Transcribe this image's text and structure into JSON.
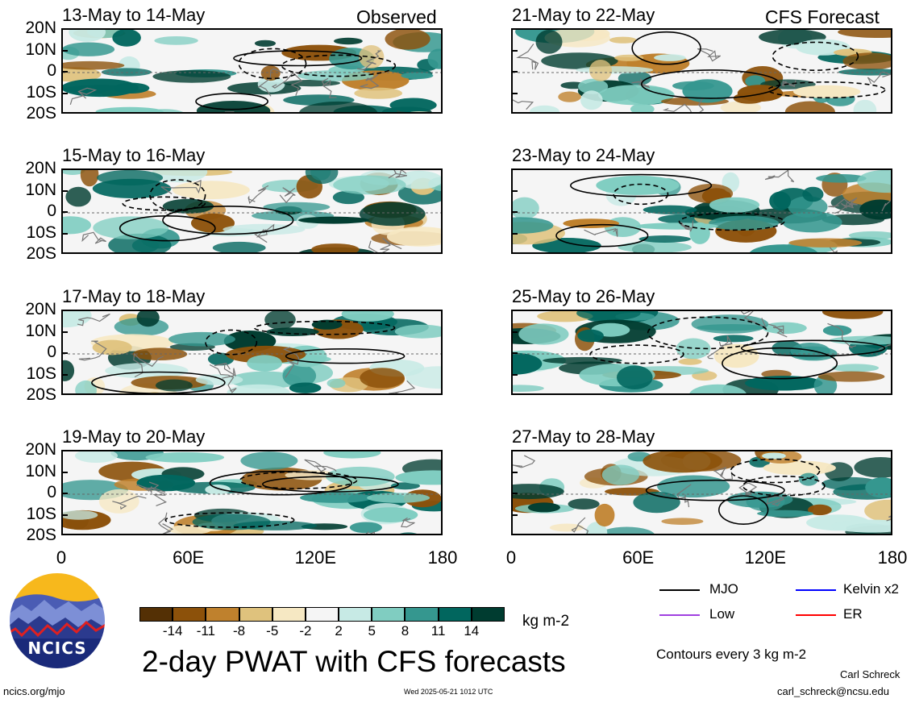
{
  "header": {
    "observed_label": "Observed",
    "forecast_label": "CFS Forecast"
  },
  "chart_data": {
    "type": "heatmap",
    "title": "2-day PWAT with CFS forecasts",
    "variable": "PWAT anomaly",
    "units": "kg m-2",
    "contour_note": "Contours every 3 kg m-2",
    "x_range": [
      0,
      180
    ],
    "y_range": [
      -20,
      20
    ],
    "x_ticks": [
      "0",
      "60E",
      "120E",
      "180"
    ],
    "y_ticks": [
      "20N",
      "10N",
      "0",
      "10S",
      "20S"
    ],
    "panels": [
      {
        "title": "13-May to 14-May",
        "source": "Observed"
      },
      {
        "title": "15-May to 16-May",
        "source": "Observed"
      },
      {
        "title": "17-May to 18-May",
        "source": "Observed"
      },
      {
        "title": "19-May to 20-May",
        "source": "Observed"
      },
      {
        "title": "21-May to 22-May",
        "source": "CFS Forecast"
      },
      {
        "title": "23-May to 24-May",
        "source": "CFS Forecast"
      },
      {
        "title": "25-May to 26-May",
        "source": "CFS Forecast"
      },
      {
        "title": "27-May to 28-May",
        "source": "CFS Forecast"
      }
    ],
    "colorbar": {
      "labels": [
        "-14",
        "-11",
        "-8",
        "-5",
        "-2",
        "2",
        "5",
        "8",
        "11",
        "14"
      ],
      "colors": [
        "#543005",
        "#8c510a",
        "#bf812d",
        "#dfc27d",
        "#f6e8c3",
        "#f5f5f5",
        "#c7eae5",
        "#80cdc1",
        "#35978f",
        "#01665e",
        "#003c30"
      ]
    },
    "legend": [
      {
        "label": "MJO",
        "color": "#000000"
      },
      {
        "label": "Kelvin x2",
        "color": "#0000ff"
      },
      {
        "label": "Low",
        "color": "#a040e0"
      },
      {
        "label": "ER",
        "color": "#ff0000"
      }
    ]
  },
  "footer": {
    "logo_text": "NCICS",
    "url": "ncics.org/mjo",
    "timestamp": "Wed 2025-05-21 1012 UTC",
    "author": "Carl Schreck",
    "email": "carl_schreck@ncsu.edu"
  }
}
